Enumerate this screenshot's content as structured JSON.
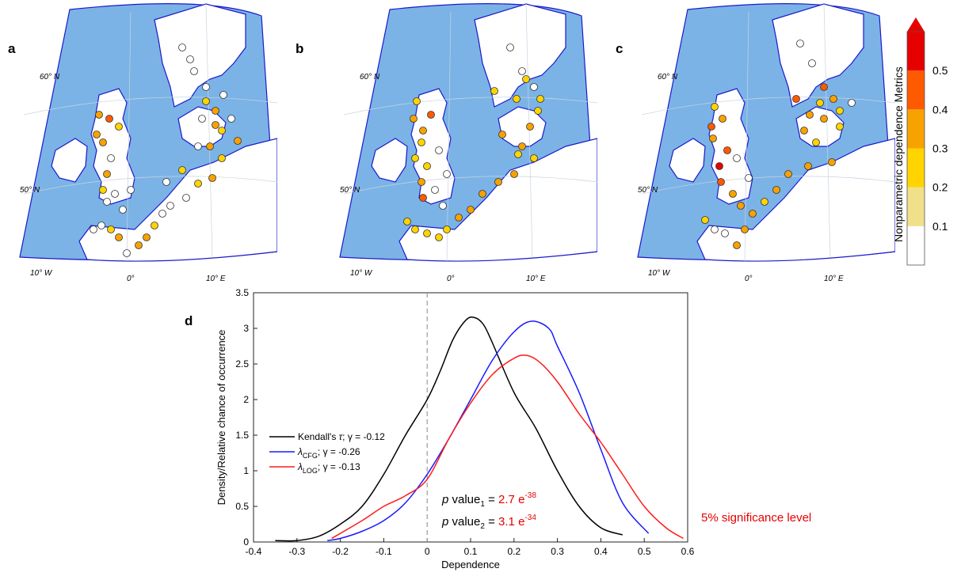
{
  "panels": {
    "a": "a",
    "b": "b",
    "c": "c",
    "d": "d"
  },
  "maps": {
    "lat_labels": [
      "60° N",
      "50° N"
    ],
    "lon_labels": [
      "10° W",
      "0°",
      "10° E"
    ],
    "sea_color": "#7bb3e6",
    "land_color": "#ffffff",
    "coast_color": "#1a1acc"
  },
  "colorbar": {
    "title": "Nonparametric dependence Metrics",
    "tick_labels": [
      "0.5",
      "0.4",
      "0.3",
      "0.2",
      "0.1"
    ],
    "colors": [
      "#ffffff",
      "#f0e08a",
      "#ffd400",
      "#f7a200",
      "#ff5a00",
      "#e60000"
    ],
    "arrow_color": "#e60000"
  },
  "annotations": {
    "pvalue1_prefix": "p",
    "pvalue1_label": " value",
    "pvalue1_sub": "1",
    "pvalue1_eq": " = ",
    "pvalue1_val": "2.7 e",
    "pvalue1_exp": "-38",
    "pvalue2_prefix": "p",
    "pvalue2_label": " value",
    "pvalue2_sub": "2",
    "pvalue2_eq": " = ",
    "pvalue2_val": "3.1 e",
    "pvalue2_exp": "-34",
    "significance": "5% significance level",
    "value_color": "#e60000"
  },
  "chart_data": {
    "type": "line",
    "xlabel": "Dependence",
    "ylabel": "Density/Relative chance of occurrence",
    "xlim": [
      -0.4,
      0.6
    ],
    "ylim": [
      0,
      3.5
    ],
    "xticks": [
      "-0.4",
      "-0.3",
      "-0.2",
      "-0.1",
      "0",
      "0.1",
      "0.2",
      "0.3",
      "0.4",
      "0.5",
      "0.6"
    ],
    "yticks": [
      "0",
      "0.5",
      "1",
      "1.5",
      "2",
      "2.5",
      "3",
      "3.5"
    ],
    "vline_x": 0,
    "legend_position": "left",
    "series": [
      {
        "legend_pre": "Kendall's ",
        "legend_sym": "τ",
        "legend_sub": "",
        "legend_post": "; γ = -0.12",
        "color": "#000000",
        "x": [
          -0.35,
          -0.3,
          -0.25,
          -0.2,
          -0.15,
          -0.1,
          -0.05,
          0.0,
          0.03,
          0.06,
          0.09,
          0.11,
          0.13,
          0.15,
          0.2,
          0.25,
          0.3,
          0.35,
          0.4,
          0.45
        ],
        "y": [
          0.02,
          0.02,
          0.08,
          0.25,
          0.5,
          0.95,
          1.5,
          2.0,
          2.4,
          2.85,
          3.12,
          3.15,
          3.05,
          2.8,
          2.1,
          1.6,
          1.0,
          0.5,
          0.2,
          0.1
        ]
      },
      {
        "legend_pre": "",
        "legend_sym": "λ",
        "legend_sub": "CFG",
        "legend_post": "; γ = -0.26",
        "color": "#1a1aff",
        "x": [
          -0.23,
          -0.2,
          -0.15,
          -0.1,
          -0.05,
          0.0,
          0.05,
          0.1,
          0.15,
          0.2,
          0.24,
          0.28,
          0.3,
          0.35,
          0.4,
          0.45,
          0.51
        ],
        "y": [
          0.02,
          0.05,
          0.15,
          0.3,
          0.55,
          0.95,
          1.45,
          2.0,
          2.55,
          2.95,
          3.1,
          3.0,
          2.75,
          2.1,
          1.3,
          0.55,
          0.12
        ]
      },
      {
        "legend_pre": "",
        "legend_sym": "λ",
        "legend_sub": "LOG",
        "legend_post": "; γ = -0.13",
        "color": "#ff1a1a",
        "x": [
          -0.22,
          -0.15,
          -0.1,
          -0.05,
          0.0,
          0.05,
          0.1,
          0.15,
          0.2,
          0.23,
          0.26,
          0.3,
          0.35,
          0.4,
          0.45,
          0.5,
          0.55,
          0.59
        ],
        "y": [
          0.05,
          0.3,
          0.5,
          0.65,
          0.88,
          1.45,
          1.95,
          2.35,
          2.58,
          2.62,
          2.52,
          2.25,
          1.8,
          1.4,
          0.95,
          0.5,
          0.2,
          0.05
        ]
      }
    ]
  }
}
